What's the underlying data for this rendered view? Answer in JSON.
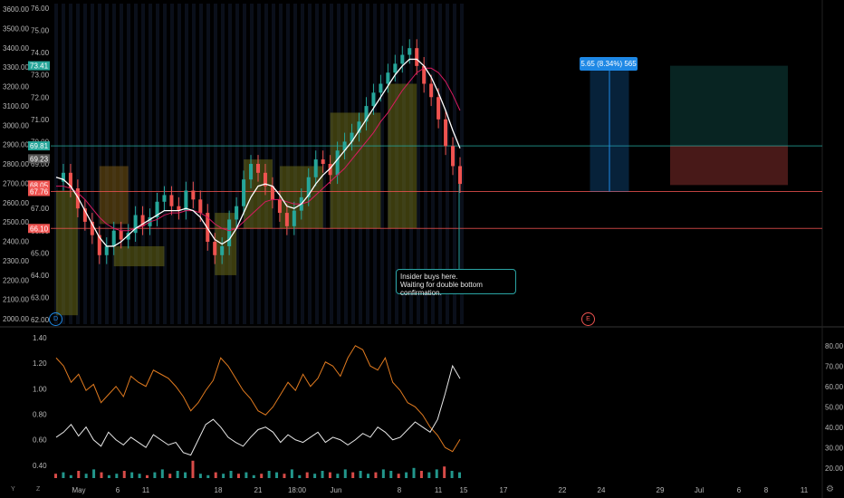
{
  "chart_data": {
    "type": "candlestick",
    "left_axis_ticks": [
      "3600.00",
      "3500.00",
      "3400.00",
      "3300.00",
      "3200.00",
      "3100.00",
      "3000.00",
      "2900.00",
      "2800.00",
      "2700.00",
      "2600.00",
      "2500.00",
      "2400.00",
      "2300.00",
      "2200.00",
      "2100.00",
      "2000.00"
    ],
    "price_axis_ticks": [
      "76.00",
      "75.00",
      "74.00",
      "73.00",
      "72.00",
      "71.00",
      "70.00",
      "69.00",
      "68.00",
      "67.00",
      "66.00",
      "65.00",
      "64.00",
      "63.00",
      "62.00"
    ],
    "price_range": [
      61.8,
      76.2
    ],
    "price_tags": [
      {
        "label": "73.41",
        "value": 73.41,
        "color": "#26a69a"
      },
      {
        "label": "69.81",
        "value": 69.81,
        "color": "#26a69a"
      },
      {
        "label": "69.23",
        "value": 69.23,
        "color": "#555555"
      },
      {
        "label": "68.05",
        "value": 68.05,
        "color": "#ef5350"
      },
      {
        "label": "67.76",
        "value": 67.76,
        "color": "#ef5350"
      },
      {
        "label": "66.10",
        "value": 66.1,
        "color": "#ef5350"
      }
    ],
    "horizontal_lines": [
      {
        "value": 69.81,
        "color": "#26a69a"
      },
      {
        "value": 67.76,
        "color": "#ef5350"
      },
      {
        "value": 66.1,
        "color": "#ef5350"
      }
    ],
    "close_series": [
      68.2,
      68.6,
      67.9,
      67.0,
      66.4,
      65.8,
      64.9,
      65.3,
      66.0,
      65.6,
      65.9,
      66.7,
      66.2,
      66.6,
      67.3,
      67.6,
      67.1,
      66.9,
      67.8,
      67.4,
      66.8,
      65.5,
      64.9,
      65.3,
      66.5,
      67.1,
      68.3,
      69.0,
      68.6,
      68.0,
      67.4,
      66.8,
      66.2,
      66.9,
      67.5,
      68.4,
      69.2,
      69.0,
      68.5,
      69.6,
      70.0,
      70.4,
      70.9,
      71.6,
      72.2,
      72.6,
      73.1,
      73.5,
      73.9,
      74.2,
      73.4,
      72.6,
      72.0,
      71.0,
      69.8,
      68.9,
      68.1
    ],
    "fast_ma": [
      68.4,
      68.3,
      68.0,
      67.5,
      66.9,
      66.3,
      65.7,
      65.3,
      65.3,
      65.5,
      65.8,
      66.1,
      66.3,
      66.5,
      66.7,
      66.9,
      66.9,
      66.9,
      67.0,
      66.9,
      66.6,
      66.1,
      65.6,
      65.4,
      65.6,
      66.1,
      66.8,
      67.5,
      68.0,
      68.1,
      68.0,
      67.6,
      67.1,
      67.0,
      67.2,
      67.6,
      68.1,
      68.5,
      68.8,
      69.2,
      69.6,
      70.0,
      70.5,
      71.0,
      71.5,
      72.0,
      72.5,
      73.0,
      73.4,
      73.7,
      73.7,
      73.4,
      72.9,
      72.2,
      71.4,
      70.5,
      69.7
    ],
    "slow_ma": [
      68.0,
      68.0,
      67.9,
      67.7,
      67.4,
      67.0,
      66.6,
      66.3,
      66.1,
      66.0,
      66.0,
      66.1,
      66.2,
      66.4,
      66.5,
      66.7,
      66.8,
      66.8,
      66.9,
      66.9,
      66.8,
      66.6,
      66.3,
      66.1,
      66.0,
      66.1,
      66.4,
      66.7,
      67.0,
      67.3,
      67.4,
      67.4,
      67.3,
      67.2,
      67.2,
      67.3,
      67.6,
      67.9,
      68.2,
      68.5,
      68.8,
      69.2,
      69.6,
      70.0,
      70.4,
      70.9,
      71.3,
      71.8,
      72.3,
      72.7,
      73.1,
      73.3,
      73.3,
      73.1,
      72.7,
      72.1,
      71.4
    ],
    "zones": [
      {
        "from": 0,
        "to": 3,
        "low": 62.2,
        "high": 67.8,
        "color": "#6b6b1a"
      },
      {
        "from": 6,
        "to": 10,
        "low": 66.3,
        "high": 68.9,
        "color": "#7a5a16"
      },
      {
        "from": 8,
        "to": 15,
        "low": 64.4,
        "high": 65.3,
        "color": "#6b6b1a"
      },
      {
        "from": 22,
        "to": 25,
        "low": 64.0,
        "high": 66.8,
        "color": "#6b6b1a"
      },
      {
        "from": 26,
        "to": 30,
        "low": 66.1,
        "high": 69.2,
        "color": "#6b6b1a"
      },
      {
        "from": 31,
        "to": 37,
        "low": 66.1,
        "high": 68.9,
        "color": "#6b6b1a"
      },
      {
        "from": 38,
        "to": 45,
        "low": 66.1,
        "high": 71.3,
        "color": "#6b6b1a"
      },
      {
        "from": 46,
        "to": 50,
        "low": 66.1,
        "high": 72.6,
        "color": "#6b6b1a"
      }
    ],
    "x_labels": [
      "May",
      "6",
      "11",
      "18",
      "21",
      "18:00",
      "Jun",
      "8",
      "11",
      "15",
      "17",
      "22",
      "24",
      "29",
      "Jul",
      "6",
      "8",
      "11"
    ],
    "oscillator_ticks_left": [
      "1.40",
      "1.20",
      "1.00",
      "0.80",
      "0.60",
      "0.40"
    ],
    "oscillator_ticks_right": [
      "80.00",
      "70.00",
      "60.00",
      "50.00",
      "40.00",
      "30.00",
      "20.00"
    ],
    "rsi_series": [
      74,
      70,
      62,
      66,
      58,
      61,
      52,
      56,
      60,
      55,
      65,
      62,
      60,
      68,
      66,
      64,
      60,
      55,
      48,
      52,
      58,
      63,
      74,
      70,
      64,
      58,
      54,
      48,
      46,
      50,
      56,
      62,
      58,
      66,
      60,
      64,
      72,
      70,
      65,
      74,
      80,
      78,
      70,
      68,
      74,
      62,
      58,
      52,
      50,
      46,
      40,
      36,
      30,
      28,
      34
    ],
    "white_series": [
      0.62,
      0.66,
      0.72,
      0.63,
      0.7,
      0.6,
      0.55,
      0.66,
      0.6,
      0.56,
      0.62,
      0.58,
      0.54,
      0.64,
      0.6,
      0.56,
      0.58,
      0.5,
      0.48,
      0.6,
      0.72,
      0.76,
      0.7,
      0.62,
      0.58,
      0.55,
      0.62,
      0.68,
      0.7,
      0.66,
      0.58,
      0.64,
      0.6,
      0.58,
      0.62,
      0.66,
      0.58,
      0.62,
      0.6,
      0.56,
      0.6,
      0.65,
      0.62,
      0.7,
      0.66,
      0.6,
      0.62,
      0.68,
      0.74,
      0.7,
      0.66,
      0.76,
      0.96,
      1.18,
      1.08
    ],
    "volumes": [
      3,
      4,
      2,
      5,
      3,
      6,
      4,
      2,
      3,
      5,
      4,
      3,
      2,
      4,
      6,
      3,
      5,
      4,
      12,
      3,
      2,
      4,
      3,
      5,
      3,
      4,
      2,
      3,
      5,
      4,
      3,
      6,
      2,
      4,
      3,
      5,
      4,
      3,
      6,
      4,
      5,
      3,
      4,
      6,
      5,
      3,
      4,
      7,
      5,
      4,
      6,
      8,
      5,
      4
    ],
    "measure_label": "5.65 (8.34%) 565",
    "annotation_lines": [
      "Insider buys here.",
      "Waiting for double bottom confirmation."
    ],
    "event_markers": [
      "D",
      "E"
    ]
  },
  "toolbar_corners": {
    "left_top": "Y",
    "z_label": "Z",
    "gear": "⚙"
  }
}
